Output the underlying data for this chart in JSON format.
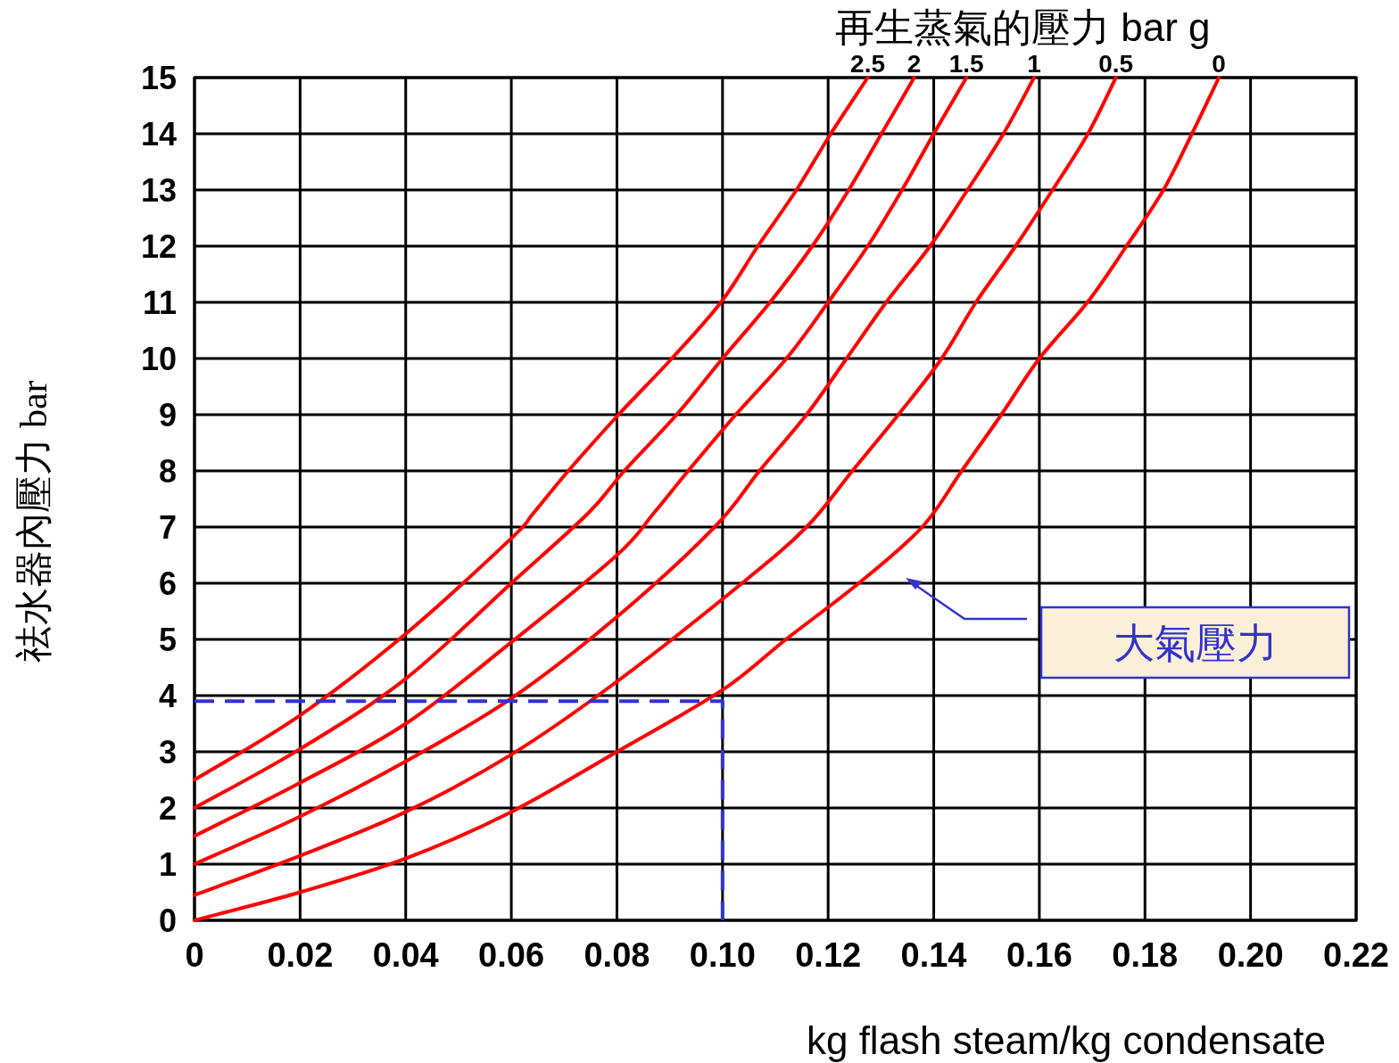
{
  "chart_data": {
    "type": "line",
    "legend_title": "再生蒸氣的壓力 bar g",
    "xlabel": "kg flash steam/kg condensate",
    "ylabel": "祛水器內壓力  bar",
    "xlim": [
      0,
      0.22
    ],
    "ylim": [
      0,
      15
    ],
    "xticks": [
      0,
      0.02,
      0.04,
      0.06,
      0.08,
      {
        "value": 0.1,
        "label": "0.10"
      },
      0.12,
      0.14,
      0.16,
      0.18,
      {
        "value": 0.2,
        "label": "0.20"
      },
      0.22
    ],
    "yticks": [
      0,
      1,
      2,
      3,
      4,
      5,
      6,
      7,
      8,
      9,
      10,
      11,
      12,
      13,
      14,
      15
    ],
    "grid": true,
    "series": [
      {
        "name": "2.5",
        "color": "#ff0000",
        "x": [
          0,
          0.02,
          0.04,
          0.06,
          0.0642,
          0.0708,
          0.0803,
          0.0904,
          0.0997,
          0.1067,
          0.114,
          0.1205,
          0.1275
        ],
        "values": [
          2.5,
          3.65,
          5.1,
          6.8,
          7.25,
          8,
          9,
          10,
          11,
          12,
          13,
          14,
          15
        ]
      },
      {
        "name": "2",
        "color": "#ff0000",
        "x": [
          0,
          0.02,
          0.04,
          0.06,
          0.0746,
          0.0814,
          0.0913,
          0.1,
          0.109,
          0.117,
          0.1239,
          0.1301,
          0.1363
        ],
        "values": [
          2,
          3.05,
          4.3,
          6.0,
          7.25,
          8,
          9,
          10,
          11,
          12,
          13,
          14,
          15
        ]
      },
      {
        "name": "1.5",
        "color": "#ff0000",
        "x": [
          0,
          0.02,
          0.04,
          0.06,
          0.08,
          0.087,
          0.0935,
          0.1025,
          0.1121,
          0.12,
          0.1275,
          0.134,
          0.14,
          0.1462
        ],
        "values": [
          1.5,
          2.45,
          3.5,
          4.95,
          6.5,
          7.25,
          8,
          9,
          10,
          11,
          12,
          13,
          14,
          15
        ]
      },
      {
        "name": "1",
        "color": "#ff0000",
        "x": [
          0,
          0.02,
          0.04,
          0.06,
          0.08,
          0.0985,
          0.107,
          0.1159,
          0.1235,
          0.131,
          0.1393,
          0.1464,
          0.1532,
          0.159
        ],
        "values": [
          1,
          1.85,
          2.83,
          3.95,
          5.4,
          7,
          8,
          9,
          10,
          11,
          12,
          13,
          14,
          15
        ]
      },
      {
        "name": "0.5",
        "color": "#ff0000",
        "x": [
          0,
          0.02,
          0.04,
          0.06,
          0.08,
          0.1037,
          0.1159,
          0.1246,
          0.1333,
          0.1415,
          0.148,
          0.1555,
          0.1625,
          0.1692,
          0.1745
        ],
        "values": [
          0.45,
          1.15,
          1.93,
          2.95,
          4.25,
          6,
          7,
          8,
          9,
          10,
          11,
          12,
          13,
          14,
          15
        ]
      },
      {
        "name": "0",
        "color": "#ff0000",
        "x": [
          0,
          0.02,
          0.04,
          0.06,
          0.08,
          0.1,
          0.112,
          0.1258,
          0.1378,
          0.1453,
          0.1528,
          0.16,
          0.1691,
          0.1765,
          0.1835,
          0.1889,
          0.194
        ],
        "values": [
          0,
          0.5,
          1.1,
          1.93,
          3.0,
          4.1,
          5,
          6,
          7,
          8,
          9,
          10,
          11,
          12,
          13,
          14,
          15
        ]
      },
      {
        "type": "line",
        "color": "#3333cc",
        "line_style": "dashed",
        "x": [
          0,
          0.1,
          0.1
        ],
        "values": [
          3.9,
          3.9,
          0
        ]
      }
    ],
    "annotations": [
      "大氣壓力"
    ]
  }
}
